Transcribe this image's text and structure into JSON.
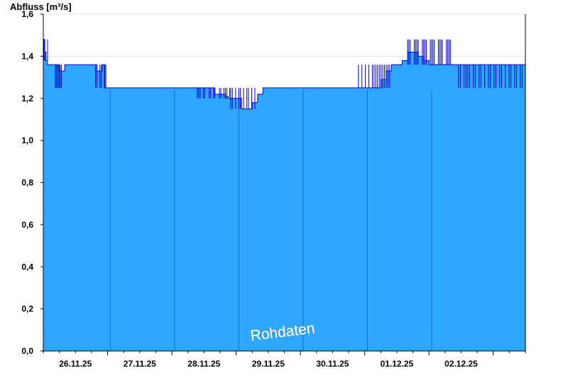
{
  "chart_data": {
    "type": "area",
    "ylabel": "Abfluss [m³/s]",
    "ylim": [
      0,
      1.6
    ],
    "y_ticks": [
      "0,0",
      "0,2",
      "0,4",
      "0,6",
      "0,8",
      "1,0",
      "1,2",
      "1,4",
      "1,6"
    ],
    "y_tick_values": [
      0,
      0.2,
      0.4,
      0.6,
      0.8,
      1.0,
      1.2,
      1.4,
      1.6
    ],
    "x_range": [
      "25.11.25 12:00",
      "02.12.25 23:00"
    ],
    "x_tick_labels": [
      "26.11.25",
      "27.11.25",
      "28.11.25",
      "29.11.25",
      "30.11.25",
      "01.12.25",
      "02.12.25"
    ],
    "watermark": "Rohdaten",
    "fill_color": "#2ea8ff",
    "line_color": "#0000cc",
    "series": [
      {
        "x_hours": [
          0,
          0.5,
          1,
          1.5,
          2,
          4,
          6,
          8,
          10,
          12,
          14,
          16,
          18,
          20,
          22,
          23,
          24,
          26,
          28,
          30,
          32,
          34,
          36,
          38,
          40,
          42,
          44,
          46,
          48,
          50,
          52,
          54,
          56,
          58,
          60,
          62,
          63,
          64,
          66,
          68,
          69,
          70,
          72,
          74,
          75,
          76,
          78,
          80,
          82,
          84,
          86,
          88,
          90,
          92,
          94,
          96,
          98,
          100,
          102,
          104,
          106,
          108,
          110,
          112,
          114,
          116,
          118,
          120,
          122,
          124,
          126,
          128,
          130,
          132,
          134,
          136,
          138,
          140,
          142,
          144,
          146,
          148,
          150,
          152,
          154,
          156,
          158,
          160,
          162,
          164,
          166,
          168,
          170,
          172,
          174,
          176,
          178,
          179
        ],
        "values": [
          1.48,
          1.42,
          1.38,
          1.36,
          1.36,
          1.36,
          1.33,
          1.36,
          1.36,
          1.36,
          1.36,
          1.36,
          1.36,
          1.33,
          1.36,
          1.25,
          1.25,
          1.25,
          1.25,
          1.25,
          1.25,
          1.25,
          1.25,
          1.25,
          1.25,
          1.25,
          1.25,
          1.25,
          1.25,
          1.25,
          1.25,
          1.25,
          1.25,
          1.25,
          1.25,
          1.25,
          1.25,
          1.22,
          1.22,
          1.21,
          1.2,
          1.2,
          1.2,
          1.15,
          1.15,
          1.15,
          1.18,
          1.22,
          1.25,
          1.25,
          1.25,
          1.25,
          1.25,
          1.25,
          1.25,
          1.25,
          1.25,
          1.25,
          1.25,
          1.25,
          1.25,
          1.25,
          1.25,
          1.25,
          1.25,
          1.25,
          1.25,
          1.25,
          1.25,
          1.25,
          1.29,
          1.33,
          1.36,
          1.36,
          1.38,
          1.42,
          1.42,
          1.4,
          1.38,
          1.36,
          1.36,
          1.36,
          1.36,
          1.36,
          1.36,
          1.36,
          1.36,
          1.36,
          1.36,
          1.36,
          1.36,
          1.36,
          1.36,
          1.36,
          1.36,
          1.36,
          1.36,
          1.36
        ]
      }
    ]
  }
}
